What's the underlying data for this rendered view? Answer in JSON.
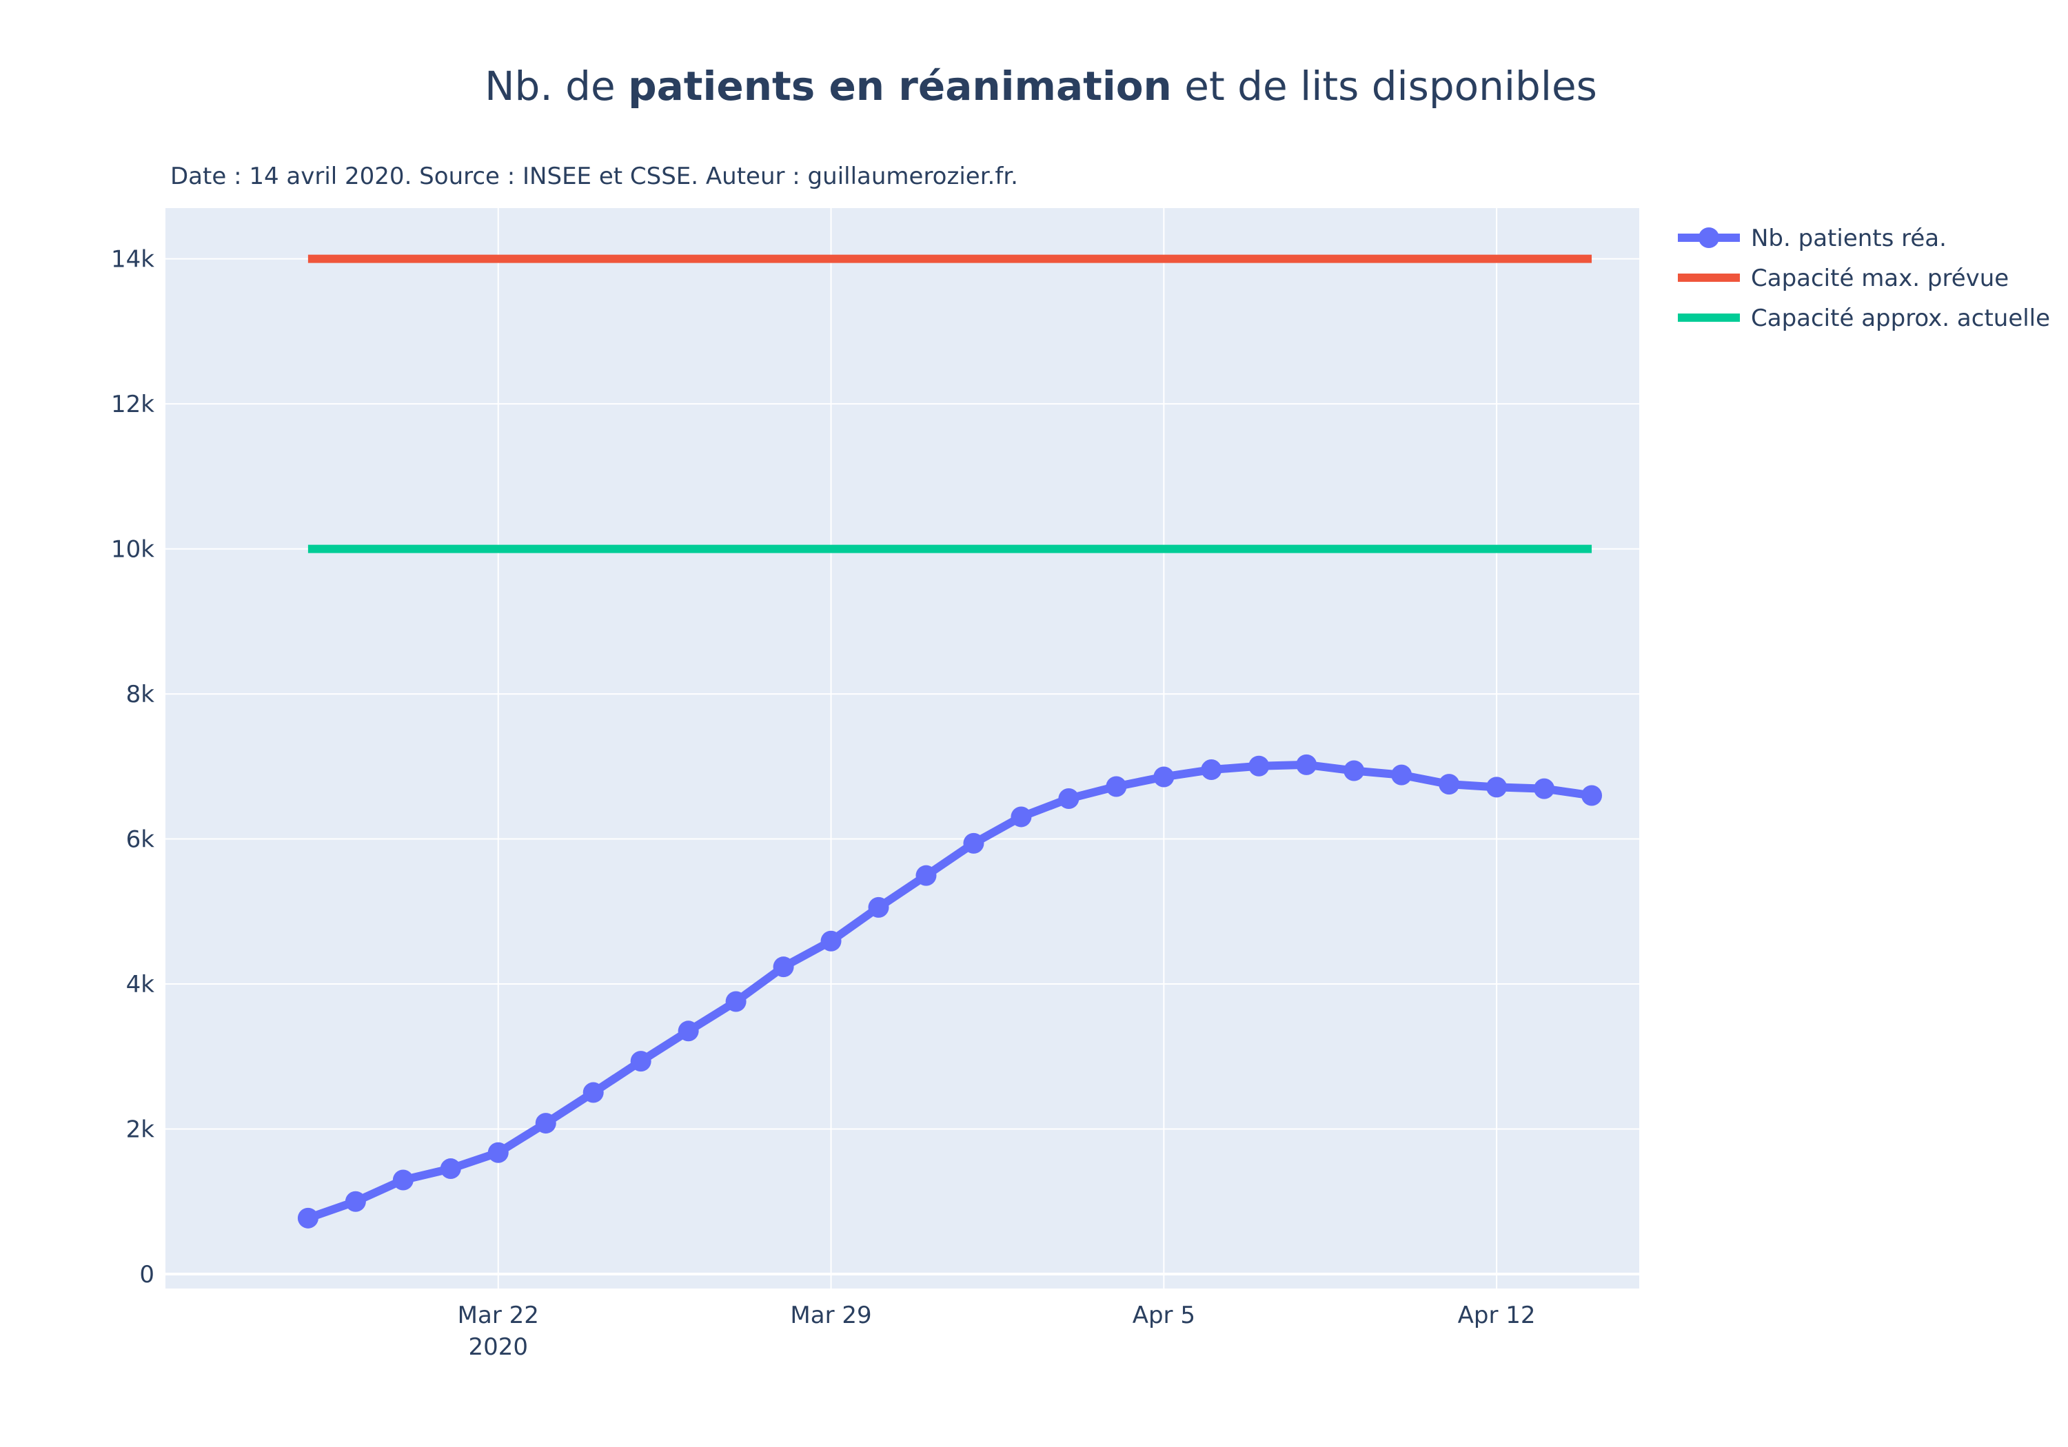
{
  "chart_data": {
    "type": "line",
    "title": {
      "prefix": "Nb. de ",
      "bold": "patients en réanimation",
      "suffix": " et de lits disponibles"
    },
    "subtitle": "Date : 14 avril 2020. Source : INSEE et CSSE. Auteur : guillaumerozier.fr.",
    "x_start_date": "2020-03-18",
    "x_range": [
      "2020-03-15",
      "2020-04-15"
    ],
    "x_ticks": [
      {
        "date": "2020-03-22",
        "label": "Mar 22",
        "sublabel": "2020"
      },
      {
        "date": "2020-03-29",
        "label": "Mar 29",
        "sublabel": ""
      },
      {
        "date": "2020-04-05",
        "label": "Apr 5",
        "sublabel": ""
      },
      {
        "date": "2020-04-12",
        "label": "Apr 12",
        "sublabel": ""
      }
    ],
    "y_range": [
      -200,
      14700
    ],
    "y_ticks": [
      {
        "value": 0,
        "label": "0"
      },
      {
        "value": 2000,
        "label": "2k"
      },
      {
        "value": 4000,
        "label": "4k"
      },
      {
        "value": 6000,
        "label": "6k"
      },
      {
        "value": 8000,
        "label": "8k"
      },
      {
        "value": 10000,
        "label": "10k"
      },
      {
        "value": 12000,
        "label": "12k"
      },
      {
        "value": 14000,
        "label": "14k"
      }
    ],
    "grid": true,
    "legend_position": "right",
    "series": [
      {
        "name": "Nb. patients réa.",
        "color": "#636efa",
        "mode": "lines+markers",
        "x": [
          "2020-03-18",
          "2020-03-19",
          "2020-03-20",
          "2020-03-21",
          "2020-03-22",
          "2020-03-23",
          "2020-03-24",
          "2020-03-25",
          "2020-03-26",
          "2020-03-27",
          "2020-03-28",
          "2020-03-29",
          "2020-03-30",
          "2020-03-31",
          "2020-04-01",
          "2020-04-02",
          "2020-04-03",
          "2020-04-04",
          "2020-04-05",
          "2020-04-06",
          "2020-04-07",
          "2020-04-08",
          "2020-04-09",
          "2020-04-10",
          "2020-04-11",
          "2020-04-12",
          "2020-04-13",
          "2020-04-14"
        ],
        "values": [
          771,
          1000,
          1297,
          1453,
          1674,
          2080,
          2503,
          2935,
          3351,
          3758,
          4236,
          4592,
          5056,
          5495,
          5940,
          6305,
          6556,
          6723,
          6856,
          6955,
          7005,
          7023,
          6941,
          6883,
          6755,
          6714,
          6693,
          6599
        ]
      },
      {
        "name": "Capacité max. prévue",
        "color": "#ef553b",
        "mode": "lines",
        "x": [
          "2020-03-18",
          "2020-04-14"
        ],
        "values": [
          14000,
          14000
        ]
      },
      {
        "name": "Capacité approx. actuelle",
        "color": "#00cc96",
        "mode": "lines",
        "x": [
          "2020-03-18",
          "2020-04-14"
        ],
        "values": [
          10000,
          10000
        ]
      }
    ]
  },
  "colors": {
    "plot_background": "#e5ecf6",
    "grid": "#ffffff",
    "text": "#2a3f5f"
  }
}
